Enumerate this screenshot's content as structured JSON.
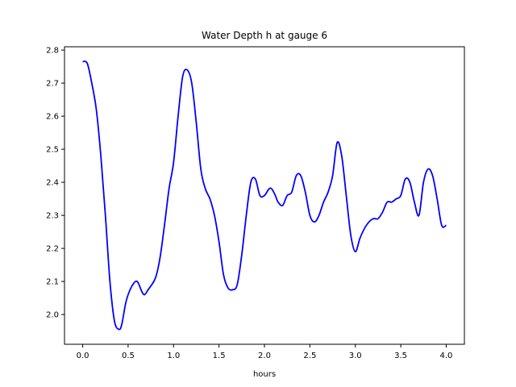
{
  "chart_data": {
    "type": "line",
    "title": "Water Depth h at gauge 6",
    "xlabel": "hours",
    "ylabel": "",
    "xlim": [
      -0.2,
      4.2
    ],
    "ylim": [
      1.91,
      2.81
    ],
    "xticks": [
      0.0,
      0.5,
      1.0,
      1.5,
      2.0,
      2.5,
      3.0,
      3.5,
      4.0
    ],
    "xtick_labels": [
      "0.0",
      "0.5",
      "1.0",
      "1.5",
      "2.0",
      "2.5",
      "3.0",
      "3.5",
      "4.0"
    ],
    "yticks": [
      2.0,
      2.1,
      2.2,
      2.3,
      2.4,
      2.5,
      2.6,
      2.7,
      2.8
    ],
    "ytick_labels": [
      "2.0",
      "2.1",
      "2.2",
      "2.3",
      "2.4",
      "2.5",
      "2.6",
      "2.7",
      "2.8"
    ],
    "grid": false,
    "series": [
      {
        "color": "#0000ff",
        "x": [
          0.0,
          0.05,
          0.1,
          0.15,
          0.2,
          0.25,
          0.3,
          0.35,
          0.4,
          0.43,
          0.47,
          0.5,
          0.55,
          0.6,
          0.65,
          0.68,
          0.72,
          0.8,
          0.85,
          0.9,
          0.95,
          1.0,
          1.05,
          1.1,
          1.15,
          1.2,
          1.25,
          1.3,
          1.35,
          1.4,
          1.45,
          1.5,
          1.55,
          1.6,
          1.65,
          1.7,
          1.75,
          1.8,
          1.85,
          1.9,
          1.95,
          2.0,
          2.05,
          2.08,
          2.12,
          2.15,
          2.2,
          2.25,
          2.3,
          2.35,
          2.4,
          2.45,
          2.5,
          2.55,
          2.6,
          2.65,
          2.7,
          2.75,
          2.8,
          2.85,
          2.9,
          2.95,
          3.0,
          3.05,
          3.1,
          3.15,
          3.2,
          3.25,
          3.3,
          3.35,
          3.4,
          3.45,
          3.5,
          3.55,
          3.6,
          3.65,
          3.7,
          3.75,
          3.8,
          3.85,
          3.9,
          3.95,
          4.0
        ],
        "y": [
          2.765,
          2.76,
          2.7,
          2.62,
          2.48,
          2.3,
          2.1,
          1.98,
          1.955,
          1.97,
          2.03,
          2.06,
          2.09,
          2.1,
          2.07,
          2.06,
          2.075,
          2.11,
          2.17,
          2.27,
          2.38,
          2.46,
          2.6,
          2.72,
          2.74,
          2.7,
          2.58,
          2.44,
          2.38,
          2.35,
          2.3,
          2.22,
          2.12,
          2.08,
          2.075,
          2.09,
          2.18,
          2.3,
          2.4,
          2.41,
          2.36,
          2.36,
          2.38,
          2.38,
          2.36,
          2.34,
          2.33,
          2.36,
          2.37,
          2.42,
          2.42,
          2.37,
          2.3,
          2.28,
          2.3,
          2.34,
          2.37,
          2.42,
          2.52,
          2.48,
          2.36,
          2.24,
          2.19,
          2.23,
          2.26,
          2.28,
          2.29,
          2.29,
          2.31,
          2.34,
          2.34,
          2.35,
          2.36,
          2.41,
          2.4,
          2.34,
          2.3,
          2.4,
          2.44,
          2.42,
          2.35,
          2.27,
          2.27
        ]
      }
    ]
  }
}
